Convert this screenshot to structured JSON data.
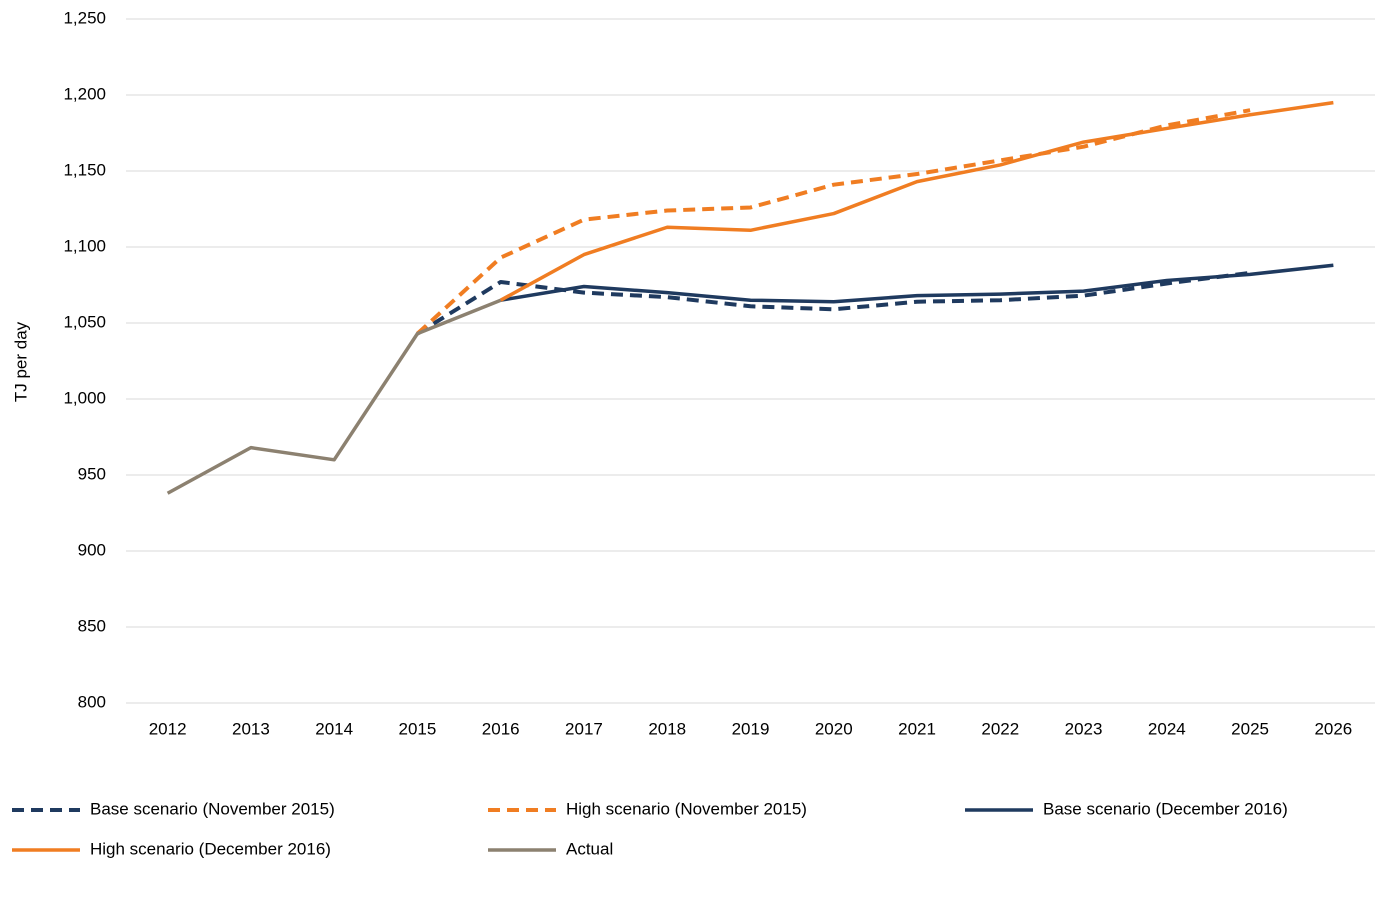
{
  "chart_data": {
    "type": "line",
    "y_label": "TJ per day",
    "categories": [
      "2012",
      "2013",
      "2014",
      "2015",
      "2016",
      "2017",
      "2018",
      "2019",
      "2020",
      "2021",
      "2022",
      "2023",
      "2024",
      "2025",
      "2026"
    ],
    "ylim": [
      800,
      1250
    ],
    "yticks": [
      800,
      850,
      900,
      950,
      {
        "value": 1000,
        "label": "1,000"
      },
      {
        "value": 1050,
        "label": "1,050"
      },
      {
        "value": 1100,
        "label": "1,100"
      },
      {
        "value": 1150,
        "label": "1,150"
      },
      {
        "value": 1200,
        "label": "1,200"
      },
      {
        "value": 1250,
        "label": "1,250"
      }
    ],
    "grid": true,
    "legend": "bottom",
    "series": [
      {
        "name": "Base scenario (November 2015)",
        "color": "#1f3a5f",
        "dashed": true,
        "values": [
          null,
          null,
          null,
          1043,
          1077,
          1070,
          1067,
          1061,
          1059,
          1064,
          1065,
          1068,
          1076,
          1083,
          null
        ]
      },
      {
        "name": "High scenario (November 2015)",
        "color": "#f07d22",
        "dashed": true,
        "values": [
          null,
          null,
          null,
          1043,
          1093,
          1118,
          1124,
          1126,
          1141,
          1148,
          1157,
          1166,
          1180,
          1190,
          null
        ]
      },
      {
        "name": "Base scenario (December 2016)",
        "color": "#1f3a5f",
        "dashed": false,
        "values": [
          null,
          null,
          null,
          null,
          1065,
          1074,
          1070,
          1065,
          1064,
          1068,
          1069,
          1071,
          1078,
          1082,
          1088
        ]
      },
      {
        "name": "High scenario (December 2016)",
        "color": "#f07d22",
        "dashed": false,
        "values": [
          null,
          null,
          null,
          null,
          1065,
          1095,
          1113,
          1111,
          1122,
          1143,
          1154,
          1169,
          1178,
          1187,
          1195
        ]
      },
      {
        "name": "Actual",
        "color": "#8c8170",
        "dashed": false,
        "values": [
          938,
          968,
          960,
          1043,
          1065,
          null,
          null,
          null,
          null,
          null,
          null,
          null,
          null,
          null,
          null
        ]
      }
    ]
  }
}
